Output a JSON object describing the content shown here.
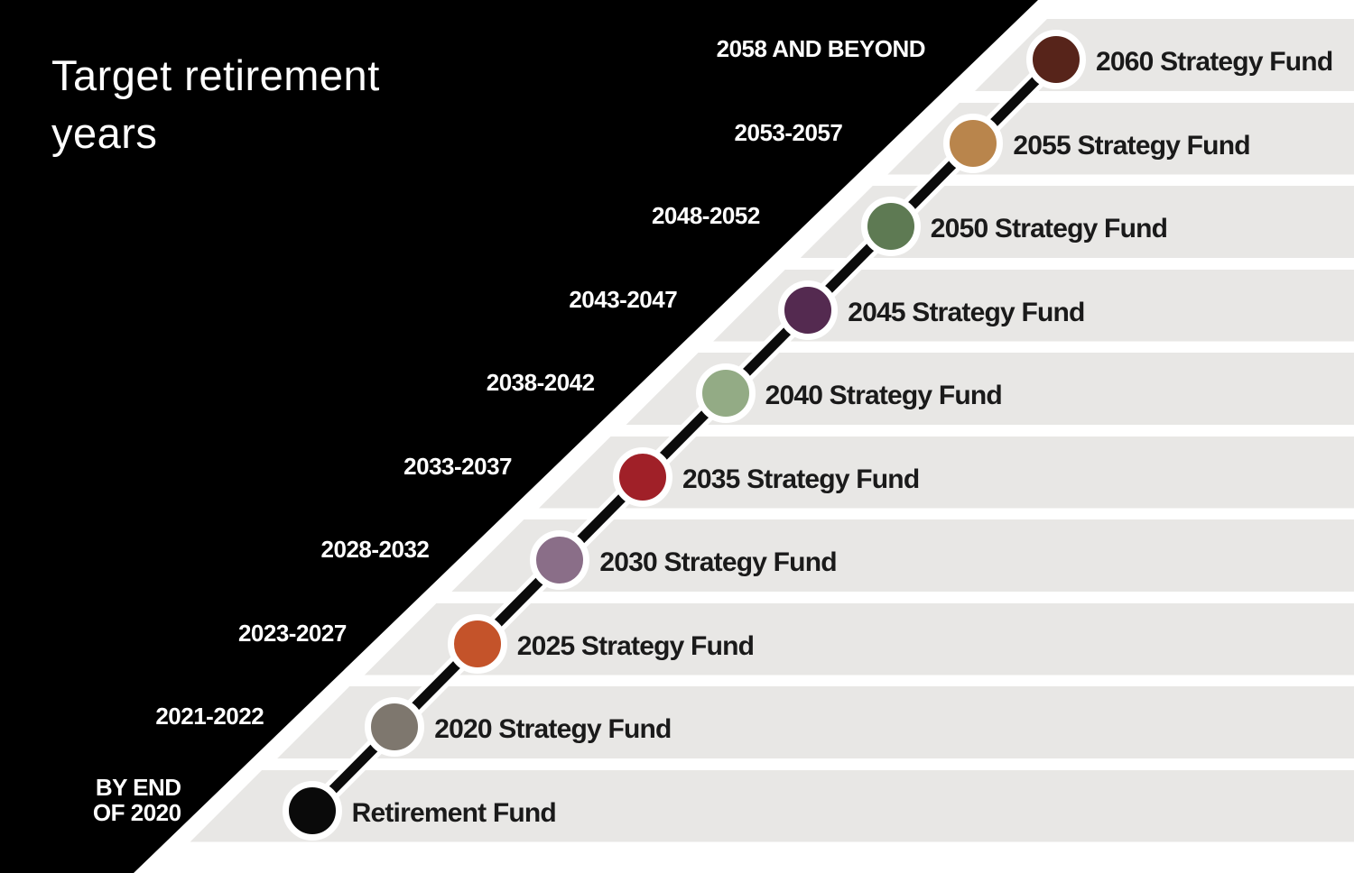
{
  "title": {
    "line1": "Target retirement",
    "line2": "years"
  },
  "colors": {
    "background": "#ffffff",
    "panel": "#000000",
    "band": "#e8e7e5",
    "line": "#0b0b0b",
    "ring": "#ffffff",
    "fund_text": "#1a1a1a",
    "year_text": "#ffffff"
  },
  "funds": [
    {
      "year_range": "BY END\nOF 2020",
      "fund_name": "Retirement Fund",
      "dot_color": "#0a0a0a"
    },
    {
      "year_range": "2021-2022",
      "fund_name": "2020 Strategy Fund",
      "dot_color": "#7e776e"
    },
    {
      "year_range": "2023-2027",
      "fund_name": "2025 Strategy Fund",
      "dot_color": "#c4532a"
    },
    {
      "year_range": "2028-2032",
      "fund_name": "2030 Strategy Fund",
      "dot_color": "#8a6e88"
    },
    {
      "year_range": "2033-2037",
      "fund_name": "2035 Strategy Fund",
      "dot_color": "#a02028"
    },
    {
      "year_range": "2038-2042",
      "fund_name": "2040 Strategy Fund",
      "dot_color": "#93ab85"
    },
    {
      "year_range": "2043-2047",
      "fund_name": "2045 Strategy Fund",
      "dot_color": "#542a50"
    },
    {
      "year_range": "2048-2052",
      "fund_name": "2050 Strategy Fund",
      "dot_color": "#5e7a53"
    },
    {
      "year_range": "2053-2057",
      "fund_name": "2055 Strategy Fund",
      "dot_color": "#b9854c"
    },
    {
      "year_range": "2058 AND BEYOND",
      "fund_name": "2060 Strategy Fund",
      "dot_color": "#57241a"
    }
  ]
}
